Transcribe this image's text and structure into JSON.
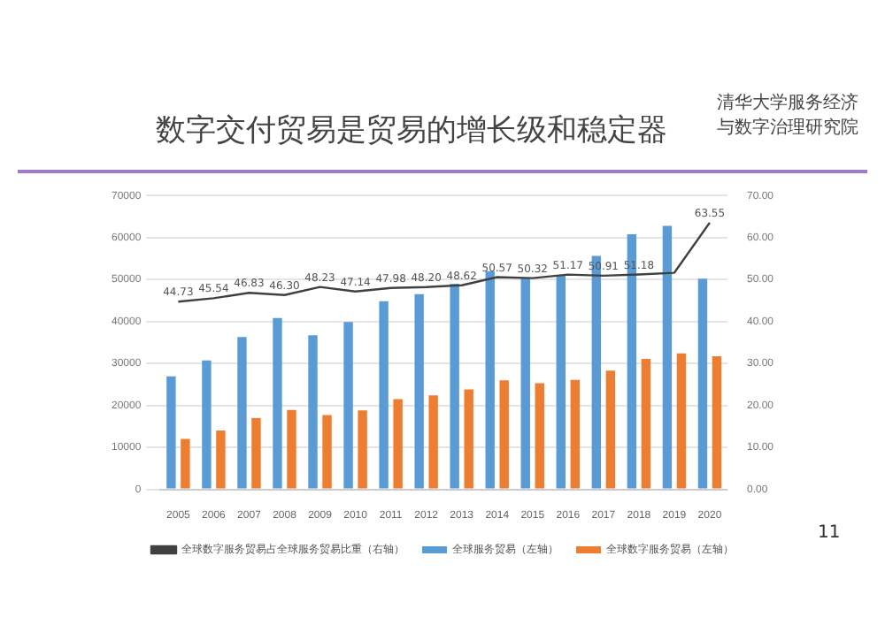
{
  "chart_data": {
    "type": "bar",
    "title": "数字交付贸易是贸易的增长级和稳定器",
    "categories": [
      "2005",
      "2006",
      "2007",
      "2008",
      "2009",
      "2010",
      "2011",
      "2012",
      "2013",
      "2014",
      "2015",
      "2016",
      "2017",
      "2018",
      "2019",
      "2020"
    ],
    "series": [
      {
        "name": "全球服务贸易（左轴）",
        "color": "#5b9bd5",
        "values": [
          26900,
          30700,
          36300,
          40800,
          36700,
          39900,
          44800,
          46500,
          49000,
          52000,
          50300,
          51000,
          55600,
          60800,
          62800,
          50200
        ]
      },
      {
        "name": "全球数字服务贸易（左轴）",
        "color": "#ed7d31",
        "values": [
          12000,
          14000,
          17000,
          18900,
          17700,
          18800,
          21500,
          22400,
          23800,
          26000,
          25300,
          26100,
          28300,
          31100,
          32400,
          31700
        ]
      },
      {
        "name": "全球数字服务贸易占全球服务贸易比重（右轴）",
        "type": "line",
        "axis": "y2",
        "color": "#404040",
        "values": [
          44.73,
          45.54,
          46.83,
          46.3,
          48.23,
          47.14,
          47.98,
          48.2,
          48.62,
          50.57,
          50.32,
          51.17,
          50.91,
          51.18,
          51.6,
          63.55
        ],
        "value_labels": [
          "44.73",
          "45.54",
          "46.83",
          "46.30",
          "48.23",
          "47.14",
          "47.98",
          "48.20",
          "48.62",
          "50.57",
          "50.32",
          "51.17",
          "50.91",
          "51.18",
          null,
          "63.55"
        ]
      }
    ],
    "ylim": [
      0,
      70000
    ],
    "yticks": [
      0,
      10000,
      20000,
      30000,
      40000,
      50000,
      60000,
      70000
    ],
    "y2lim": [
      0,
      70
    ],
    "y2ticks": [
      {
        "value": 0,
        "label": "0.00"
      },
      {
        "value": 10,
        "label": "10.00"
      },
      {
        "value": 20,
        "label": "20.00"
      },
      {
        "value": 30,
        "label": "30.00"
      },
      {
        "value": 40,
        "label": "40.00"
      },
      {
        "value": 50,
        "label": "50.00"
      },
      {
        "value": 60,
        "label": "60.00"
      },
      {
        "value": 70,
        "label": "70.00"
      }
    ],
    "grid": "y",
    "legend": "bottom",
    "marker": "none",
    "annotations": [
      "清华大学服务经济与数字治理研究院",
      "11"
    ]
  }
}
